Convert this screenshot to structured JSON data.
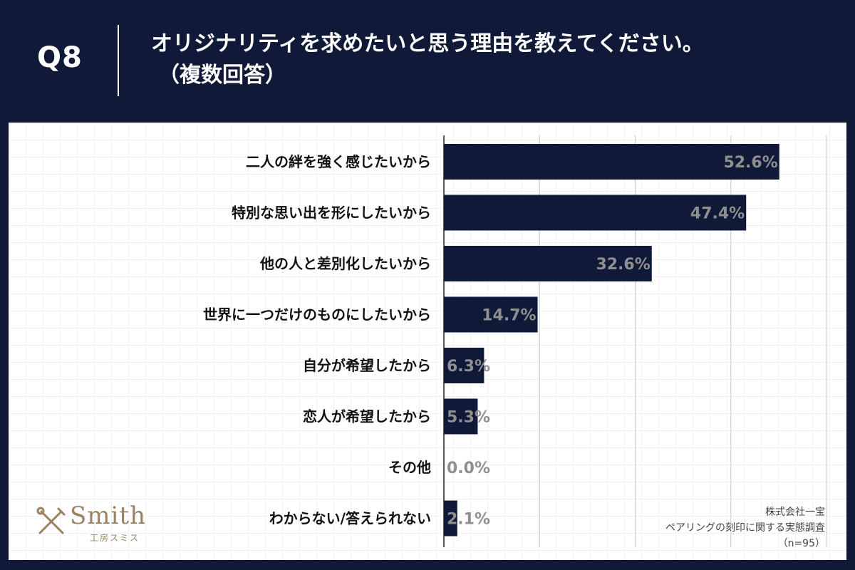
{
  "header": {
    "q_number": "Q8",
    "title_line1": "オリジナリティを求めたいと思う理由を教えてください。",
    "title_line2": "（複数回答）"
  },
  "chart_data": {
    "type": "bar",
    "orientation": "horizontal",
    "title": "オリジナリティを求めたいと思う理由を教えてください。（複数回答）",
    "categories": [
      "二人の絆を強く感じたいから",
      "特別な思い出を形にしたいから",
      "他の人と差別化したいから",
      "世界に一つだけのものにしたいから",
      "自分が希望したから",
      "恋人が希望したから",
      "その他",
      "わからない/答えられない"
    ],
    "values": [
      52.6,
      47.4,
      32.6,
      14.7,
      6.3,
      5.3,
      0.0,
      2.1
    ],
    "value_labels": [
      "52.6%",
      "47.4%",
      "32.6%",
      "14.7%",
      "6.3%",
      "5.3%",
      "0.0%",
      "2.1%"
    ],
    "unit": "%",
    "xlim": [
      0,
      60
    ],
    "grid_step": 15,
    "bar_color": "#101a38",
    "label_color": "#8f8f8f"
  },
  "footer": {
    "logo_text": "Smith",
    "logo_sub": "工房スミス",
    "source_company": "株式会社一宝",
    "source_survey": "ペアリングの刻印に関する実態調査",
    "source_n": "（n=95）"
  },
  "colors": {
    "background": "#101a38",
    "panel": "#ffffff",
    "logo": "#9a8262"
  }
}
